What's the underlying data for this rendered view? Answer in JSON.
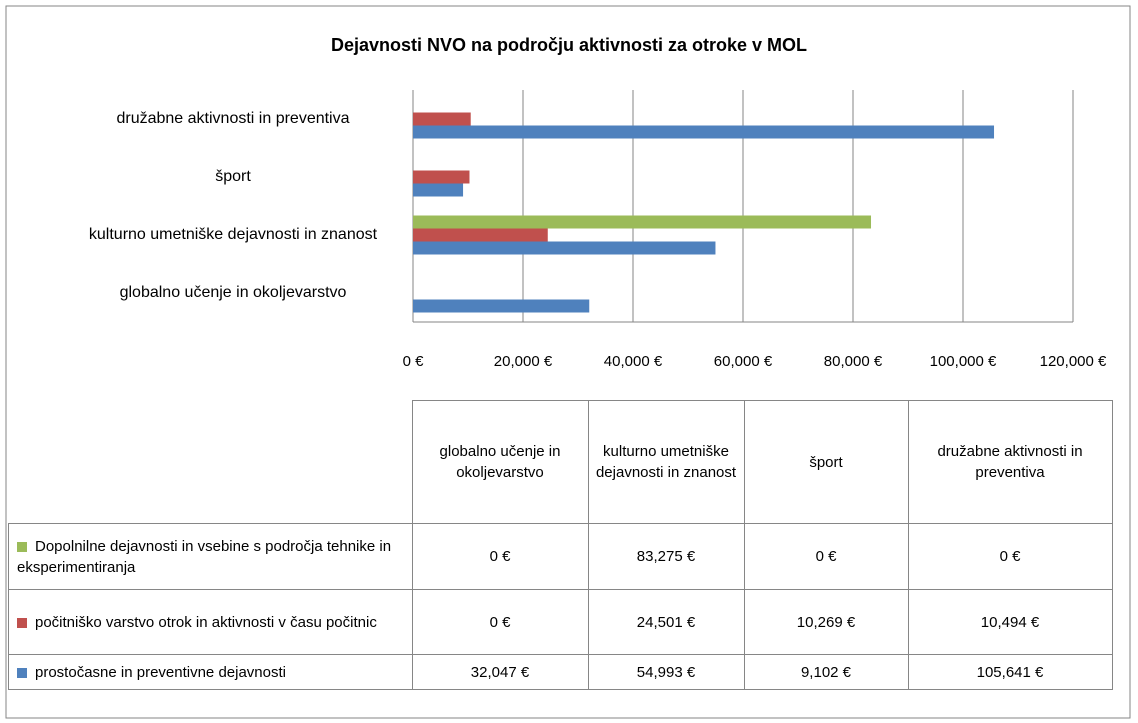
{
  "chart_data": {
    "type": "bar",
    "orientation": "horizontal",
    "title": "Dejavnosti NVO na področju aktivnosti za otroke v MOL",
    "categories": [
      "globalno učenje in okoljevarstvo",
      "kulturno umetniške dejavnosti in znanost",
      "šport",
      "družabne aktivnosti in preventiva"
    ],
    "series": [
      {
        "name": "Dopolnilne dejavnosti in vsebine s področja tehnike in eksperimentiranja",
        "color": "#9bbb59",
        "values": [
          0,
          83275,
          0,
          0
        ],
        "value_labels": [
          "0 €",
          "83,275 €",
          "0 €",
          "0 €"
        ]
      },
      {
        "name": "počitniško varstvo otrok in aktivnosti v času počitnic",
        "color": "#c0504d",
        "values": [
          0,
          24501,
          10269,
          10494
        ],
        "value_labels": [
          "0 €",
          "24,501 €",
          "10,269 €",
          "10,494 €"
        ]
      },
      {
        "name": "prostočasne in preventivne dejavnosti",
        "color": "#4f81bd",
        "values": [
          32047,
          54993,
          9102,
          105641
        ],
        "value_labels": [
          "32,047 €",
          "54,993 €",
          "9,102 €",
          "105,641 €"
        ]
      }
    ],
    "xlim": [
      0,
      120000
    ],
    "xticks": [
      {
        "value": 0,
        "label": "0 €"
      },
      {
        "value": 20000,
        "label": "20,000 €"
      },
      {
        "value": 40000,
        "label": "40,000 €"
      },
      {
        "value": 60000,
        "label": "60,000 €"
      },
      {
        "value": 80000,
        "label": "80,000 €"
      },
      {
        "value": 100000,
        "label": "100,000 €"
      },
      {
        "value": 120000,
        "label": "120,000 €"
      }
    ],
    "grid": true
  }
}
